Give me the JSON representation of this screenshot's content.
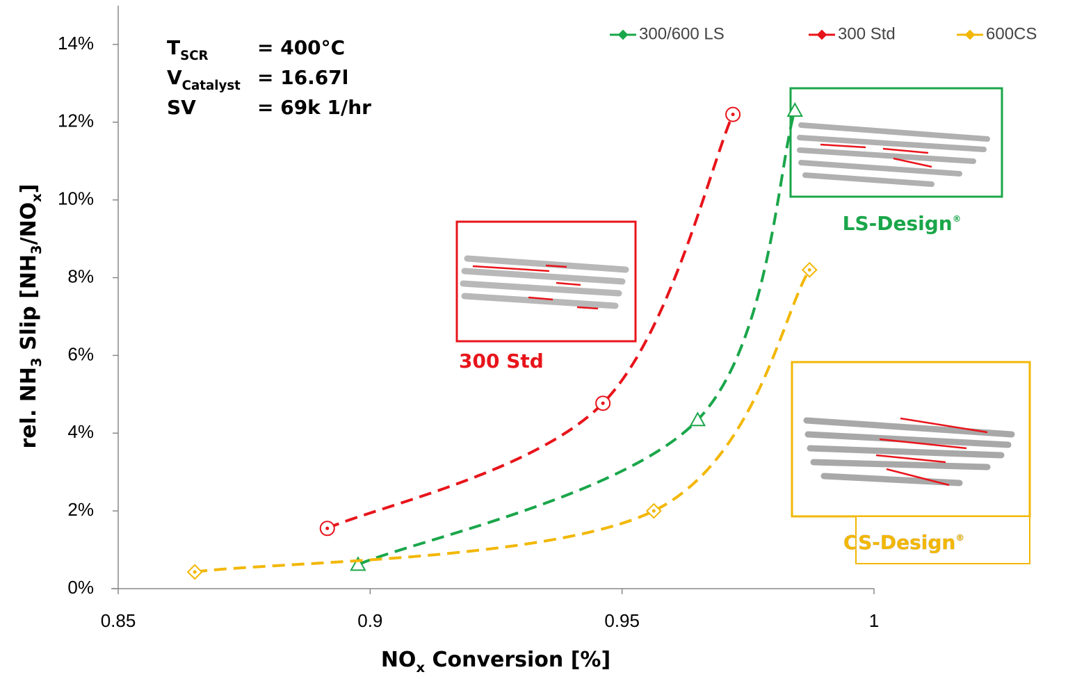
{
  "chart_data": {
    "type": "line",
    "x_label": [
      "NO",
      "x",
      " Conversion [%]"
    ],
    "y_label": [
      "rel.  NH",
      "3",
      " Slip [NH",
      "3",
      "/NO",
      "x",
      "]"
    ],
    "xlim": [
      0.85,
      1
    ],
    "xticks": [
      0.85,
      0.9,
      0.95,
      1
    ],
    "ylim": [
      0,
      15
    ],
    "yticks": [
      {
        "value": 0,
        "label": "0%"
      },
      {
        "value": 2,
        "label": "2%"
      },
      {
        "value": 4,
        "label": "4%"
      },
      {
        "value": 6,
        "label": "6%"
      },
      {
        "value": 8,
        "label": "8%"
      },
      {
        "value": 10,
        "label": "10%"
      },
      {
        "value": 12,
        "label": "12%"
      },
      {
        "value": 14,
        "label": "14%"
      }
    ],
    "grid": false,
    "legend": "top",
    "dashed": true,
    "series": [
      {
        "name": "300/600 LS",
        "color": "#1aa64a",
        "marker": "triangle",
        "x": [
          0.8976,
          0.965,
          0.9843
        ],
        "values": [
          0.62,
          4.34,
          12.3
        ]
      },
      {
        "name": "300 Std",
        "color": "#e8141b",
        "marker": "circle",
        "x": [
          0.8915,
          0.9462,
          0.972
        ],
        "values": [
          1.55,
          4.77,
          12.2
        ]
      },
      {
        "name": "600CS",
        "color": "#f2b705",
        "marker": "diamond",
        "x": [
          0.8652,
          0.9563,
          0.9872
        ],
        "values": [
          0.43,
          2.0,
          8.2
        ]
      }
    ],
    "conditions": [
      {
        "symbol": "T",
        "sub": "SCR",
        "value": "= 400°C"
      },
      {
        "symbol": "V",
        "sub": "Catalyst",
        "value": "= 16.67l"
      },
      {
        "symbol": "SV",
        "value": "= 69k 1/hr"
      }
    ],
    "insets": [
      {
        "label": "300 Std",
        "color": "#e8141b"
      },
      {
        "label": "LS-Design",
        "mark": "®",
        "color": "#1aa64a"
      },
      {
        "label": "CS-Design",
        "mark": "®",
        "color": "#f2b705"
      }
    ]
  }
}
